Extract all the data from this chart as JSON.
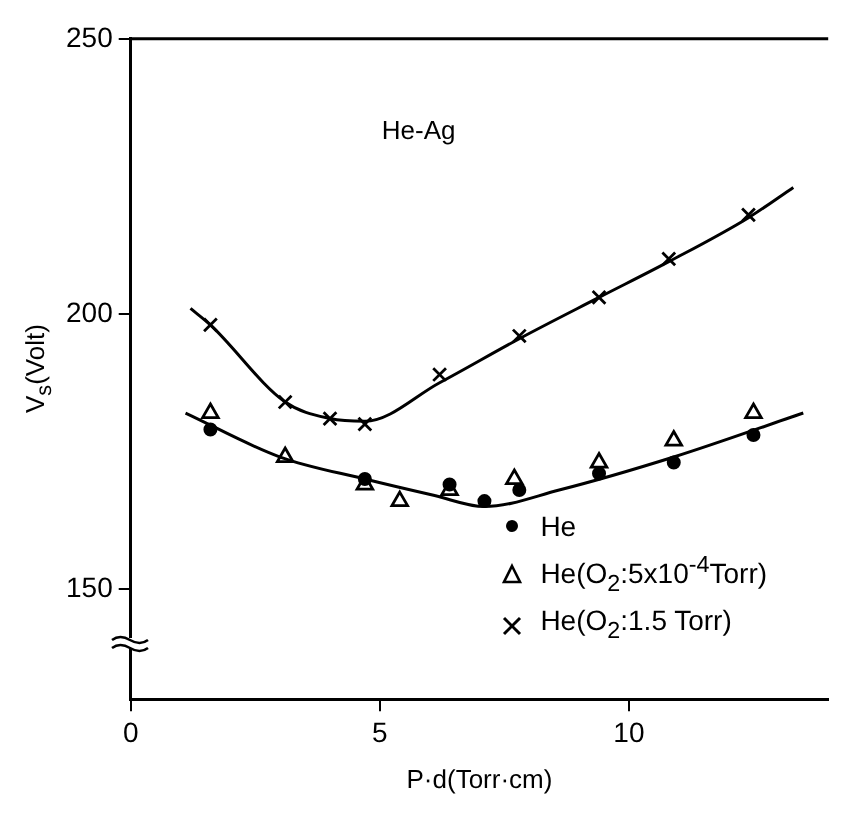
{
  "chart_data": {
    "type": "scatter",
    "ylabel": "V$_{s}$(Volt)",
    "xlabel": "P·d(Torr·cm)",
    "annotations": [
      "He-Ag"
    ],
    "xlim": [
      0,
      14
    ],
    "xticks": [
      0,
      5,
      10
    ],
    "ylim": [
      130,
      250
    ],
    "yticks": [
      150,
      200,
      250
    ],
    "grid": false,
    "legend": "bottom right",
    "series": [
      {
        "name": "He",
        "color": "#000000",
        "marker": "circle",
        "x": [
          1.6,
          4.7,
          6.4,
          7.1,
          7.8,
          9.4,
          10.9,
          12.5
        ],
        "values": [
          179,
          170,
          169,
          166,
          168,
          171,
          173,
          178
        ]
      },
      {
        "name": "He(O$_{2}$:5x10$^{-4}$Torr)",
        "color": "#000000",
        "marker": "triangle",
        "x": [
          1.6,
          3.1,
          4.7,
          5.4,
          6.4,
          7.7,
          9.4,
          10.9,
          12.5
        ],
        "values": [
          182,
          174,
          169,
          166,
          168,
          170,
          173,
          177,
          182
        ]
      },
      {
        "name": "He(O$_{2}$:1.5 Torr)",
        "color": "#000000",
        "marker": "cross",
        "x": [
          1.6,
          3.1,
          4.0,
          4.7,
          6.2,
          7.8,
          9.4,
          10.8,
          12.4
        ],
        "values": [
          198,
          184,
          181,
          180,
          189,
          196,
          203,
          210,
          218
        ]
      },
      {
        "type": "line",
        "color": "#000000",
        "marker": "none",
        "x": [
          1.1,
          3.0,
          4.7,
          6.1,
          7.1,
          8.6,
          10.9,
          13.5
        ],
        "values": [
          182,
          174,
          170,
          167,
          165,
          168,
          174,
          182
        ]
      },
      {
        "type": "line",
        "color": "#000000",
        "marker": "none",
        "x": [
          1.2,
          1.6,
          3.1,
          4.0,
          4.7,
          6.2,
          7.8,
          9.4,
          10.8,
          12.4,
          13.3
        ],
        "values": [
          201,
          198,
          184,
          181,
          180.5,
          187.5,
          195.5,
          203,
          209.5,
          217.5,
          223
        ]
      }
    ]
  }
}
